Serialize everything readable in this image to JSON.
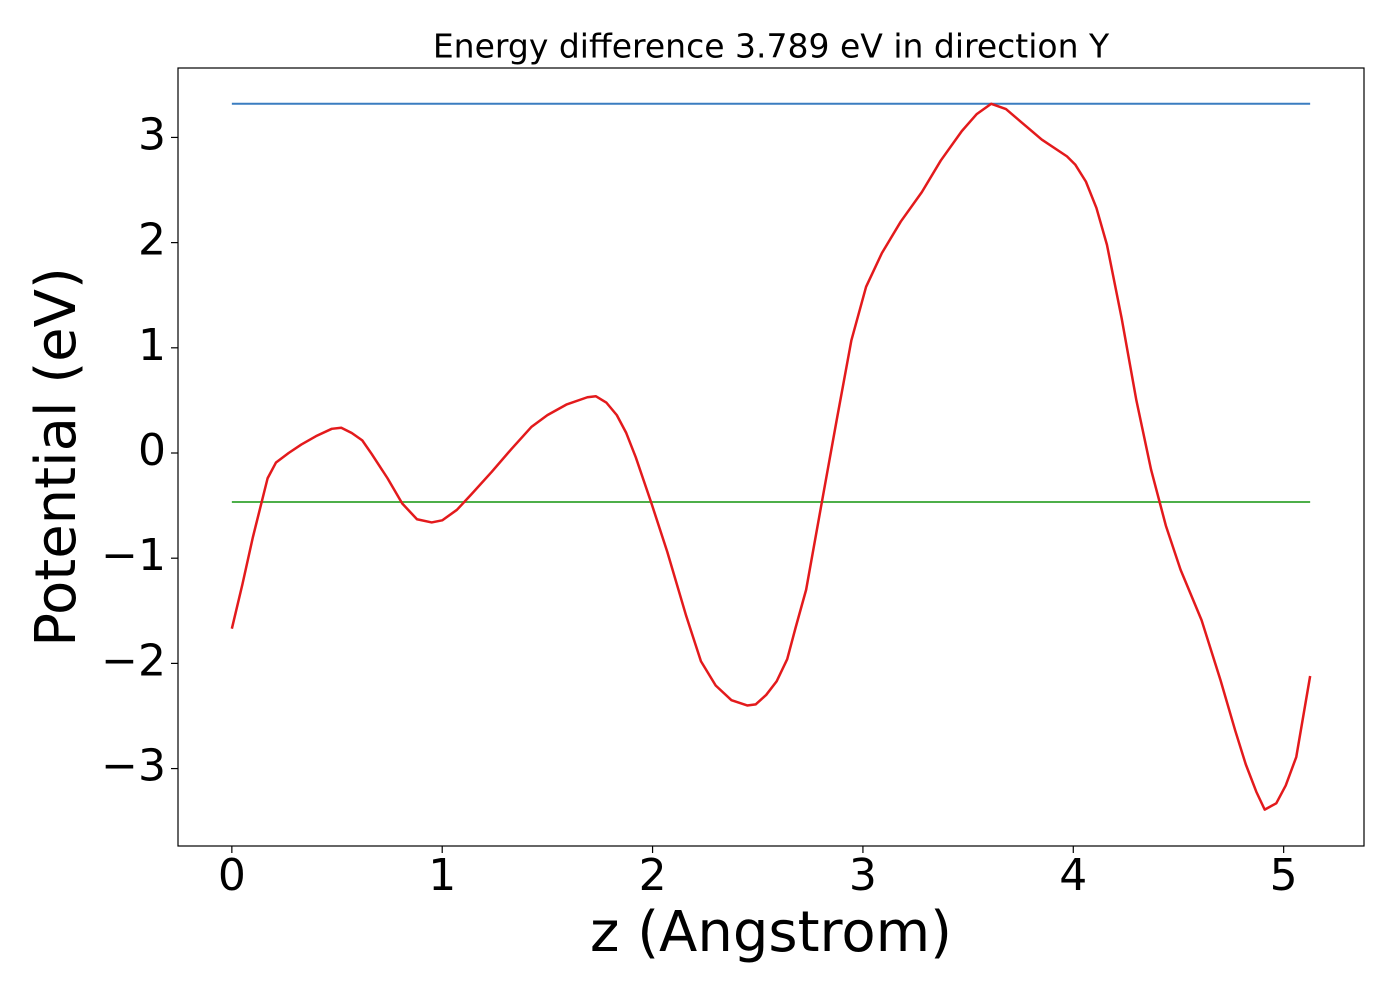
{
  "chart_data": {
    "type": "line",
    "title": "Energy difference 3.789 eV in direction Y",
    "xlabel": "z (Angstrom)",
    "ylabel": "Potential (eV)",
    "xlim": [
      -0.256,
      5.382
    ],
    "ylim": [
      -3.736,
      3.66
    ],
    "xticks": [
      0,
      1,
      2,
      3,
      4,
      5
    ],
    "yticks": [
      {
        "value": -3,
        "label": "−3"
      },
      {
        "value": -2,
        "label": "−2"
      },
      {
        "value": -1,
        "label": "−1"
      },
      0,
      1,
      2,
      3
    ],
    "x": [
      0,
      0.05,
      0.1,
      0.17,
      0.21,
      0.27,
      0.33,
      0.4,
      0.475,
      0.52,
      0.57,
      0.62,
      0.665,
      0.74,
      0.81,
      0.88,
      0.95,
      1.0,
      1.07,
      1.14,
      1.235,
      1.33,
      1.425,
      1.5,
      1.59,
      1.69,
      1.73,
      1.78,
      1.83,
      1.875,
      1.92,
      1.995,
      2.07,
      2.16,
      2.23,
      2.3,
      2.375,
      2.45,
      2.49,
      2.54,
      2.59,
      2.64,
      2.68,
      2.73,
      2.8,
      2.875,
      2.945,
      3.015,
      3.09,
      3.18,
      3.28,
      3.37,
      3.47,
      3.54,
      3.61,
      3.68,
      3.75,
      3.85,
      3.97,
      4.01,
      4.06,
      4.11,
      4.16,
      4.23,
      4.3,
      4.37,
      4.44,
      4.51,
      4.61,
      4.7,
      4.77,
      4.82,
      4.87,
      4.91,
      4.965,
      5.01,
      5.06,
      5.126
    ],
    "series": [
      {
        "color": "#e31a1c",
        "values": [
          -1.67,
          -1.25,
          -0.8,
          -0.24,
          -0.09,
          0.0,
          0.08,
          0.16,
          0.23,
          0.24,
          0.19,
          0.12,
          -0.01,
          -0.24,
          -0.48,
          -0.63,
          -0.66,
          -0.64,
          -0.54,
          -0.39,
          -0.18,
          0.04,
          0.25,
          0.36,
          0.46,
          0.53,
          0.54,
          0.48,
          0.36,
          0.19,
          -0.04,
          -0.48,
          -0.94,
          -1.55,
          -1.98,
          -2.21,
          -2.35,
          -2.4,
          -2.39,
          -2.3,
          -2.17,
          -1.96,
          -1.66,
          -1.3,
          -0.52,
          0.31,
          1.07,
          1.58,
          1.9,
          2.2,
          2.48,
          2.78,
          3.06,
          3.22,
          3.32,
          3.27,
          3.15,
          2.98,
          2.82,
          2.74,
          2.58,
          2.33,
          1.98,
          1.28,
          0.5,
          -0.16,
          -0.69,
          -1.11,
          -1.59,
          -2.16,
          -2.64,
          -2.96,
          -3.22,
          -3.39,
          -3.33,
          -3.16,
          -2.89,
          -2.12
        ]
      }
    ],
    "hlines": [
      {
        "value": 3.32,
        "color": "#3a7dc0"
      },
      {
        "value": -0.466,
        "color": "#4daf4a"
      }
    ]
  }
}
